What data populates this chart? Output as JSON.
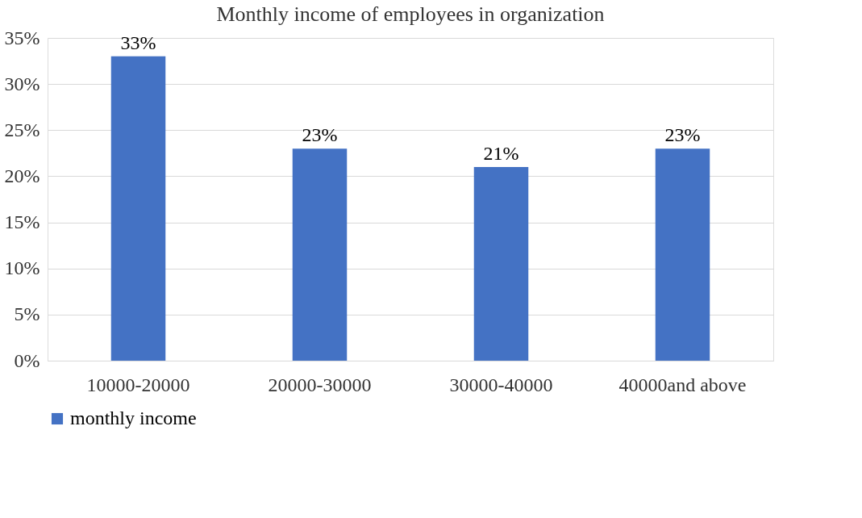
{
  "chart_data": {
    "type": "bar",
    "title": "Monthly income of employees in organization",
    "categories": [
      "10000-20000",
      "20000-30000",
      "30000-40000",
      "40000and above"
    ],
    "series": [
      {
        "name": "monthly income",
        "color": "#4472c4",
        "values": [
          33,
          23,
          21,
          23
        ]
      }
    ],
    "value_labels": [
      "33%",
      "23%",
      "21%",
      "23%"
    ],
    "ylim": [
      0,
      35
    ],
    "yticks": [
      {
        "value": 0,
        "label": "0%"
      },
      {
        "value": 5,
        "label": "5%"
      },
      {
        "value": 10,
        "label": "10%"
      },
      {
        "value": 15,
        "label": "15%"
      },
      {
        "value": 20,
        "label": "20%"
      },
      {
        "value": 25,
        "label": "25%"
      },
      {
        "value": 30,
        "label": "30%"
      },
      {
        "value": 35,
        "label": "35%"
      }
    ],
    "grid": "y",
    "legend": "bottom"
  }
}
